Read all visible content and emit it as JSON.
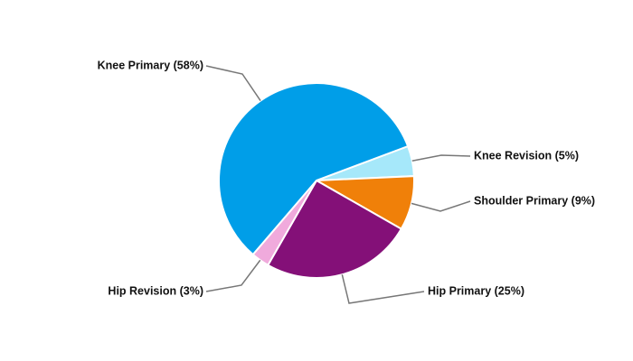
{
  "chart_data": {
    "type": "pie",
    "categories": [
      "Knee Revision (5%)",
      "Shoulder Primary (9%)",
      "Hip Primary (25%)",
      "Hip Revision (3%)",
      "Knee Primary (58%)"
    ],
    "values": [
      5,
      9,
      25,
      3,
      58
    ],
    "colors": [
      "#a6e8fa",
      "#f08009",
      "#841078",
      "#f0aadc",
      "#009ee8"
    ]
  }
}
